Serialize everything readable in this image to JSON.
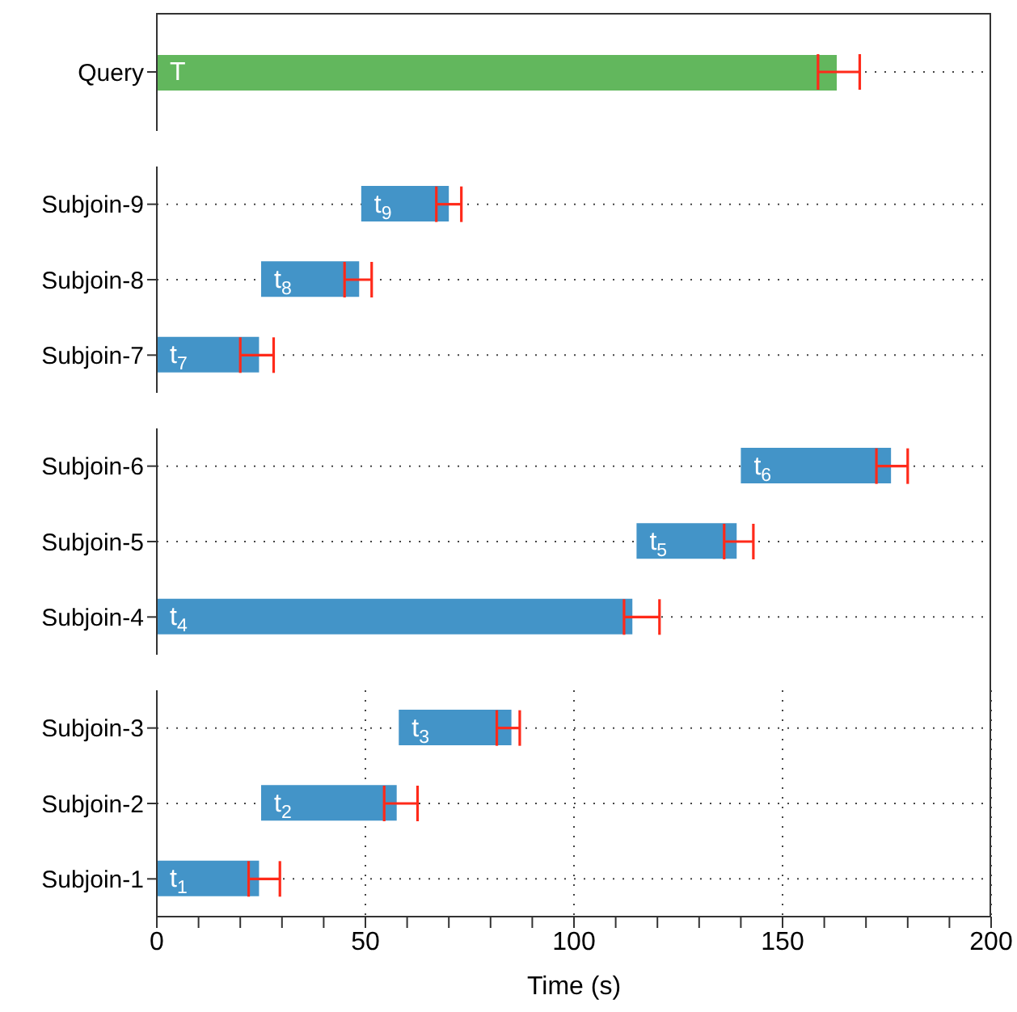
{
  "chart_data": [
    {
      "type": "bar",
      "orientation": "horizontal",
      "categories": [
        "Query"
      ],
      "base": [
        0
      ],
      "values": [
        163
      ],
      "errors": [
        [
          158.5,
          168.5
        ]
      ],
      "color": "#62b75d",
      "annotations": [
        {
          "text": "T",
          "x": 0,
          "y": "Query"
        }
      ],
      "xlim": [
        0,
        200
      ],
      "xticks": [
        0,
        50,
        100,
        150,
        200
      ],
      "grid": true,
      "tick_labels": "y"
    },
    {
      "type": "bar",
      "orientation": "horizontal",
      "categories": [
        "Subjoin-9",
        "Subjoin-8",
        "Subjoin-7"
      ],
      "base": [
        49,
        25,
        0
      ],
      "values": [
        21,
        23.5,
        24.5
      ],
      "errors": [
        [
          67,
          73
        ],
        [
          45,
          51.5
        ],
        [
          20,
          28
        ]
      ],
      "color": "#4394c8",
      "annotations": [
        {
          "text": "t$_{9}$",
          "x": 49,
          "y": "Subjoin-9"
        },
        {
          "text": "t$_{8}$",
          "x": 25,
          "y": "Subjoin-8"
        },
        {
          "text": "t$_{7}$",
          "x": 0,
          "y": "Subjoin-7"
        }
      ],
      "xlim": [
        0,
        200
      ],
      "xticks": [
        0,
        50,
        100,
        150,
        200
      ],
      "grid": true,
      "tick_labels": "y"
    },
    {
      "type": "bar",
      "orientation": "horizontal",
      "categories": [
        "Subjoin-6",
        "Subjoin-5",
        "Subjoin-4"
      ],
      "base": [
        140,
        115,
        0
      ],
      "values": [
        36,
        24,
        114
      ],
      "errors": [
        [
          172.5,
          180
        ],
        [
          136,
          143
        ],
        [
          112,
          120.5
        ]
      ],
      "color": "#4394c8",
      "annotations": [
        {
          "text": "t$_{6}$",
          "x": 140,
          "y": "Subjoin-6"
        },
        {
          "text": "t$_{5}$",
          "x": 115,
          "y": "Subjoin-5"
        },
        {
          "text": "t$_{4}$",
          "x": 0,
          "y": "Subjoin-4"
        }
      ],
      "xlim": [
        0,
        200
      ],
      "xticks": [
        0,
        50,
        100,
        150,
        200
      ],
      "grid": true,
      "tick_labels": "y"
    },
    {
      "type": "bar",
      "orientation": "horizontal",
      "categories": [
        "Subjoin-3",
        "Subjoin-2",
        "Subjoin-1"
      ],
      "base": [
        58,
        25,
        0
      ],
      "values": [
        27,
        32.5,
        24.5
      ],
      "errors": [
        [
          81.5,
          87
        ],
        [
          54.5,
          62.5
        ],
        [
          22,
          29.5
        ]
      ],
      "color": "#4394c8",
      "annotations": [
        {
          "text": "t$_{3}$",
          "x": 58,
          "y": "Subjoin-3"
        },
        {
          "text": "t$_{2}$",
          "x": 25,
          "y": "Subjoin-2"
        },
        {
          "text": "t$_{1}$",
          "x": 0,
          "y": "Subjoin-1"
        }
      ],
      "xlabel": "Time (s)",
      "xlim": [
        0,
        200
      ],
      "xticks": [
        0,
        {
          "value": 10,
          "label": null
        },
        {
          "value": 20,
          "label": null
        },
        {
          "value": 30,
          "label": null
        },
        {
          "value": 40,
          "label": null
        },
        50,
        {
          "value": 60,
          "label": null
        },
        {
          "value": 70,
          "label": null
        },
        {
          "value": 80,
          "label": null
        },
        {
          "value": 90,
          "label": null
        },
        100,
        {
          "value": 110,
          "label": null
        },
        {
          "value": 120,
          "label": null
        },
        {
          "value": 130,
          "label": null
        },
        {
          "value": 140,
          "label": null
        },
        150,
        {
          "value": 160,
          "label": null
        },
        {
          "value": 170,
          "label": null
        },
        {
          "value": 180,
          "label": null
        },
        {
          "value": 190,
          "label": null
        },
        200
      ],
      "grid": true
    }
  ]
}
